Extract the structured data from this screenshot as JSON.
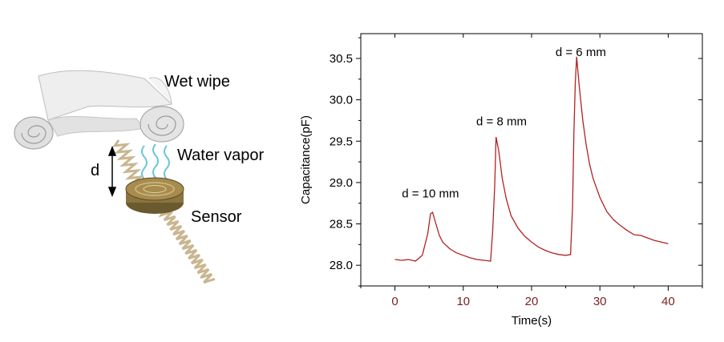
{
  "illustration": {
    "labels": {
      "wipe": "Wet wipe",
      "vapor": "Water vapor",
      "distance": "d",
      "sensor": "Sensor"
    },
    "colors": {
      "wipe": "#e8e8e8",
      "vapor": "#6cc7d6",
      "sensor": "#a88c4d",
      "wire": "#c9b690"
    }
  },
  "chart_data": {
    "type": "line",
    "xlabel": "Time(s)",
    "ylabel": "Capacitance(pF)",
    "xlim": [
      -5,
      45
    ],
    "ylim": [
      27.75,
      30.8
    ],
    "xticks": [
      0,
      10,
      20,
      30,
      40
    ],
    "xtick_labels": [
      "0",
      "10",
      "20",
      "30",
      "40"
    ],
    "yticks": [
      28.0,
      28.5,
      29.0,
      29.5,
      30.0,
      30.5
    ],
    "ytick_labels": [
      "28.0",
      "28.5",
      "29.0",
      "29.5",
      "30.0",
      "30.5"
    ],
    "grid": false,
    "legend": "none",
    "series": [
      {
        "color": "#b22222",
        "x": [
          0,
          1,
          2,
          3,
          4,
          4.8,
          5.2,
          5.5,
          6,
          6.5,
          7,
          8,
          9,
          10,
          11,
          12,
          13,
          14,
          14.3,
          14.6,
          14.8,
          15.2,
          15.7,
          16.3,
          17,
          18,
          19,
          20,
          21,
          22,
          23,
          24,
          25,
          25.7,
          26,
          26.2,
          26.4,
          26.6,
          27,
          27.5,
          28,
          28.5,
          29,
          30,
          31,
          32,
          33,
          34,
          35,
          36,
          37,
          38,
          39,
          40
        ],
        "values": [
          28.07,
          28.06,
          28.07,
          28.05,
          28.12,
          28.38,
          28.62,
          28.64,
          28.5,
          28.36,
          28.28,
          28.2,
          28.15,
          28.12,
          28.09,
          28.07,
          28.06,
          28.05,
          28.4,
          28.95,
          29.55,
          29.38,
          29.05,
          28.8,
          28.6,
          28.45,
          28.35,
          28.28,
          28.22,
          28.18,
          28.15,
          28.13,
          28.12,
          28.13,
          28.7,
          29.6,
          30.2,
          30.52,
          30.15,
          29.75,
          29.45,
          29.22,
          29.05,
          28.82,
          28.65,
          28.55,
          28.48,
          28.42,
          28.37,
          28.36,
          28.33,
          28.3,
          28.28,
          28.26
        ]
      }
    ],
    "annotations": [
      {
        "text": "d = 10 mm",
        "x": 5.2,
        "y": 28.82
      },
      {
        "text": "d = 8 mm",
        "x": 15.6,
        "y": 29.69
      },
      {
        "text": "d = 6 mm",
        "x": 27.2,
        "y": 30.53
      }
    ]
  }
}
